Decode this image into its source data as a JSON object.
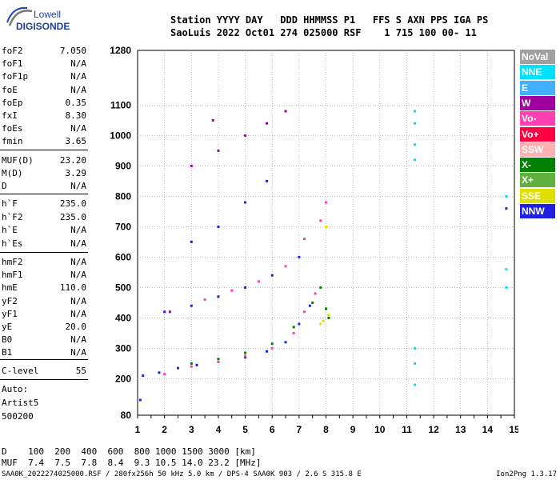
{
  "logo": {
    "line1": "Lowell",
    "line2": "DIGISONDE"
  },
  "header": {
    "row1": "Station YYYY DAY   DDD HHMMSS P1   FFS S AXN PPS IGA PS",
    "row2": "SaoLuis 2022 Oct01 274 025000 RSF    1 715 100 00- 11"
  },
  "params_group1": [
    {
      "name": "foF2",
      "value": "7.050"
    },
    {
      "name": "foF1",
      "value": "N/A"
    },
    {
      "name": "foF1p",
      "value": "N/A"
    },
    {
      "name": "foE",
      "value": "N/A"
    },
    {
      "name": "foEp",
      "value": "0.35"
    },
    {
      "name": "fxI",
      "value": "8.30"
    },
    {
      "name": "foEs",
      "value": "N/A"
    },
    {
      "name": "fmin",
      "value": "3.65"
    }
  ],
  "params_group2": [
    {
      "name": "MUF(D)",
      "value": "23.20"
    },
    {
      "name": "M(D)",
      "value": "3.29"
    },
    {
      "name": "D",
      "value": "N/A"
    }
  ],
  "params_group3": [
    {
      "name": "h`F",
      "value": "235.0"
    },
    {
      "name": "h`F2",
      "value": "235.0"
    },
    {
      "name": "h`E",
      "value": "N/A"
    },
    {
      "name": "h`Es",
      "value": "N/A"
    }
  ],
  "params_group4": [
    {
      "name": "hmF2",
      "value": "N/A"
    },
    {
      "name": "hmF1",
      "value": "N/A"
    },
    {
      "name": "hmE",
      "value": "110.0"
    },
    {
      "name": "yF2",
      "value": "N/A"
    },
    {
      "name": "yF1",
      "value": "N/A"
    },
    {
      "name": "yE",
      "value": "20.0"
    },
    {
      "name": "B0",
      "value": "N/A"
    },
    {
      "name": "B1",
      "value": "N/A"
    }
  ],
  "clevel": {
    "name": "C-level",
    "value": "55"
  },
  "autoscale": {
    "line1": "Auto:",
    "line2": "Artist5",
    "line3": "500200"
  },
  "legend": [
    {
      "label": "NoVal",
      "color": "#a0a0a0"
    },
    {
      "label": "NNE",
      "color": "#00e0ff"
    },
    {
      "label": "E",
      "color": "#40b0ff"
    },
    {
      "label": "W",
      "color": "#a000a0"
    },
    {
      "label": "Vo-",
      "color": "#ff40b0"
    },
    {
      "label": "Vo+",
      "color": "#ff0040"
    },
    {
      "label": "SSW",
      "color": "#ffb0b0"
    },
    {
      "label": "X-",
      "color": "#008000"
    },
    {
      "label": "X+",
      "color": "#60b040"
    },
    {
      "label": "SSE",
      "color": "#e0e000"
    },
    {
      "label": "NNW",
      "color": "#2020e0"
    }
  ],
  "bottom": {
    "d_row": "D    100  200  400  600  800 1000 1500 3000 [km]",
    "muf_row": "MUF  7.4  7.5  7.8  8.4  9.3 10.5 14.0 23.2 [MHz]"
  },
  "footer": {
    "left": "SAA0K_2022274025000.RSF / 280fx256h 50 kHz 5.0 km / DPS-4 SAA0K 903 / 2.6 S 315.8 E",
    "right": "Ion2Png 1.3.17"
  },
  "chart_data": {
    "type": "scatter",
    "title": "",
    "xlabel": "",
    "ylabel": "",
    "xlim": [
      1,
      15
    ],
    "ylim": [
      80,
      1280
    ],
    "x_ticks": [
      1,
      2,
      3,
      4,
      5,
      6,
      7,
      8,
      9,
      10,
      11,
      12,
      13,
      14,
      15
    ],
    "y_ticks": [
      80,
      200,
      300,
      400,
      500,
      600,
      700,
      800,
      900,
      1000,
      1100,
      1280
    ],
    "grid": true,
    "series": [
      {
        "name": "NNW",
        "points": [
          [
            1.2,
            210
          ],
          [
            1.8,
            220
          ],
          [
            2.5,
            235
          ],
          [
            3.2,
            245
          ],
          [
            4,
            255
          ],
          [
            5,
            270
          ],
          [
            5.8,
            290
          ],
          [
            6.5,
            320
          ],
          [
            7,
            380
          ],
          [
            7.4,
            440
          ],
          [
            2,
            420
          ],
          [
            3,
            440
          ],
          [
            4,
            470
          ],
          [
            5,
            500
          ],
          [
            6,
            540
          ],
          [
            7,
            600
          ],
          [
            3,
            650
          ],
          [
            4,
            700
          ],
          [
            5,
            780
          ],
          [
            5.8,
            850
          ],
          [
            1.1,
            130
          ],
          [
            14.7,
            760
          ]
        ]
      },
      {
        "name": "Vo-",
        "points": [
          [
            2,
            215
          ],
          [
            3,
            240
          ],
          [
            4,
            255
          ],
          [
            5,
            275
          ],
          [
            6,
            300
          ],
          [
            6.8,
            350
          ],
          [
            7.2,
            420
          ],
          [
            7.6,
            480
          ],
          [
            3.5,
            460
          ],
          [
            4.5,
            490
          ],
          [
            5.5,
            520
          ],
          [
            6.5,
            570
          ],
          [
            7.2,
            660
          ],
          [
            7.8,
            720
          ],
          [
            8,
            780
          ]
        ]
      },
      {
        "name": "X-",
        "points": [
          [
            3,
            250
          ],
          [
            4,
            265
          ],
          [
            5,
            285
          ],
          [
            6,
            315
          ],
          [
            6.8,
            370
          ],
          [
            7.5,
            450
          ],
          [
            7.8,
            500
          ],
          [
            8,
            430
          ],
          [
            8.1,
            400
          ]
        ]
      },
      {
        "name": "W",
        "points": [
          [
            3,
            900
          ],
          [
            4,
            950
          ],
          [
            5,
            1000
          ],
          [
            5.8,
            1040
          ],
          [
            6.5,
            1080
          ],
          [
            2.2,
            420
          ],
          [
            3.8,
            1050
          ]
        ]
      },
      {
        "name": "NNE",
        "points": [
          [
            11.3,
            1080
          ],
          [
            11.3,
            1040
          ],
          [
            11.3,
            970
          ],
          [
            11.3,
            920
          ],
          [
            11.3,
            300
          ],
          [
            11.3,
            250
          ],
          [
            11.3,
            180
          ],
          [
            14.7,
            800
          ],
          [
            14.7,
            560
          ],
          [
            14.7,
            500
          ]
        ]
      },
      {
        "name": "SSE",
        "points": [
          [
            7.9,
            390
          ],
          [
            8.1,
            410
          ],
          [
            8,
            700
          ],
          [
            7.8,
            380
          ]
        ]
      }
    ]
  }
}
